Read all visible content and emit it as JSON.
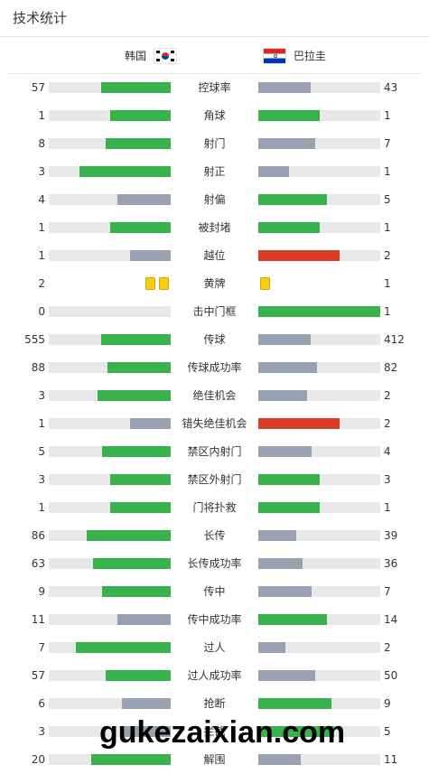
{
  "header": {
    "title": "技术统计"
  },
  "teams": {
    "home": "韩国",
    "away": "巴拉圭"
  },
  "colors": {
    "lead": "#37b24d",
    "trail": "#97a1b1",
    "red": "#dc3c26",
    "yellow": "#f7cd12",
    "track": "#e8e8e8"
  },
  "stats": [
    {
      "label": "控球率",
      "home": "57",
      "away": "43",
      "home_fill": 0.57,
      "away_fill": 0.43,
      "home_color": "green",
      "away_color": "grey"
    },
    {
      "label": "角球",
      "home": "1",
      "away": "1",
      "home_fill": 0.5,
      "away_fill": 0.5,
      "home_color": "green",
      "away_color": "green"
    },
    {
      "label": "射门",
      "home": "8",
      "away": "7",
      "home_fill": 0.53,
      "away_fill": 0.47,
      "home_color": "green",
      "away_color": "grey"
    },
    {
      "label": "射正",
      "home": "3",
      "away": "1",
      "home_fill": 0.75,
      "away_fill": 0.25,
      "home_color": "green",
      "away_color": "grey"
    },
    {
      "label": "射偏",
      "home": "4",
      "away": "5",
      "home_fill": 0.44,
      "away_fill": 0.56,
      "home_color": "grey",
      "away_color": "green"
    },
    {
      "label": "被封堵",
      "home": "1",
      "away": "1",
      "home_fill": 0.5,
      "away_fill": 0.5,
      "home_color": "green",
      "away_color": "green"
    },
    {
      "label": "越位",
      "home": "1",
      "away": "2",
      "home_fill": 0.33,
      "away_fill": 0.67,
      "home_color": "grey",
      "away_color": "red"
    },
    {
      "label": "黄牌",
      "home": "2",
      "away": "1",
      "home_cards": 2,
      "away_cards": 1
    },
    {
      "label": "击中门框",
      "home": "0",
      "away": "1",
      "home_fill": 0,
      "away_fill": 1,
      "home_color": "grey",
      "away_color": "green"
    },
    {
      "label": "传球",
      "home": "555",
      "away": "412",
      "home_fill": 0.57,
      "away_fill": 0.43,
      "home_color": "green",
      "away_color": "grey"
    },
    {
      "label": "传球成功率",
      "home": "88",
      "away": "82",
      "home_fill": 0.52,
      "away_fill": 0.48,
      "home_color": "green",
      "away_color": "grey"
    },
    {
      "label": "绝佳机会",
      "home": "3",
      "away": "2",
      "home_fill": 0.6,
      "away_fill": 0.4,
      "home_color": "green",
      "away_color": "grey"
    },
    {
      "label": "错失绝佳机会",
      "home": "1",
      "away": "2",
      "home_fill": 0.33,
      "away_fill": 0.67,
      "home_color": "grey",
      "away_color": "red"
    },
    {
      "label": "禁区内射门",
      "home": "5",
      "away": "4",
      "home_fill": 0.56,
      "away_fill": 0.44,
      "home_color": "green",
      "away_color": "grey"
    },
    {
      "label": "禁区外射门",
      "home": "3",
      "away": "3",
      "home_fill": 0.5,
      "away_fill": 0.5,
      "home_color": "green",
      "away_color": "green"
    },
    {
      "label": "门将扑救",
      "home": "1",
      "away": "1",
      "home_fill": 0.5,
      "away_fill": 0.5,
      "home_color": "green",
      "away_color": "green"
    },
    {
      "label": "长传",
      "home": "86",
      "away": "39",
      "home_fill": 0.69,
      "away_fill": 0.31,
      "home_color": "green",
      "away_color": "grey"
    },
    {
      "label": "长传成功率",
      "home": "63",
      "away": "36",
      "home_fill": 0.64,
      "away_fill": 0.36,
      "home_color": "green",
      "away_color": "grey"
    },
    {
      "label": "传中",
      "home": "9",
      "away": "7",
      "home_fill": 0.56,
      "away_fill": 0.44,
      "home_color": "green",
      "away_color": "grey"
    },
    {
      "label": "传中成功率",
      "home": "11",
      "away": "14",
      "home_fill": 0.44,
      "away_fill": 0.56,
      "home_color": "grey",
      "away_color": "green"
    },
    {
      "label": "过人",
      "home": "7",
      "away": "2",
      "home_fill": 0.78,
      "away_fill": 0.22,
      "home_color": "green",
      "away_color": "grey"
    },
    {
      "label": "过人成功率",
      "home": "57",
      "away": "50",
      "home_fill": 0.53,
      "away_fill": 0.47,
      "home_color": "green",
      "away_color": "grey"
    },
    {
      "label": "抢断",
      "home": "6",
      "away": "9",
      "home_fill": 0.4,
      "away_fill": 0.6,
      "home_color": "grey",
      "away_color": "green"
    },
    {
      "label": "拦截",
      "home": "3",
      "away": "5",
      "home_fill": 0.38,
      "away_fill": 0.62,
      "home_color": "grey",
      "away_color": "green"
    },
    {
      "label": "解围",
      "home": "20",
      "away": "11",
      "home_fill": 0.65,
      "away_fill": 0.35,
      "home_color": "green",
      "away_color": "grey"
    }
  ],
  "watermark": "gukezaixian.com"
}
